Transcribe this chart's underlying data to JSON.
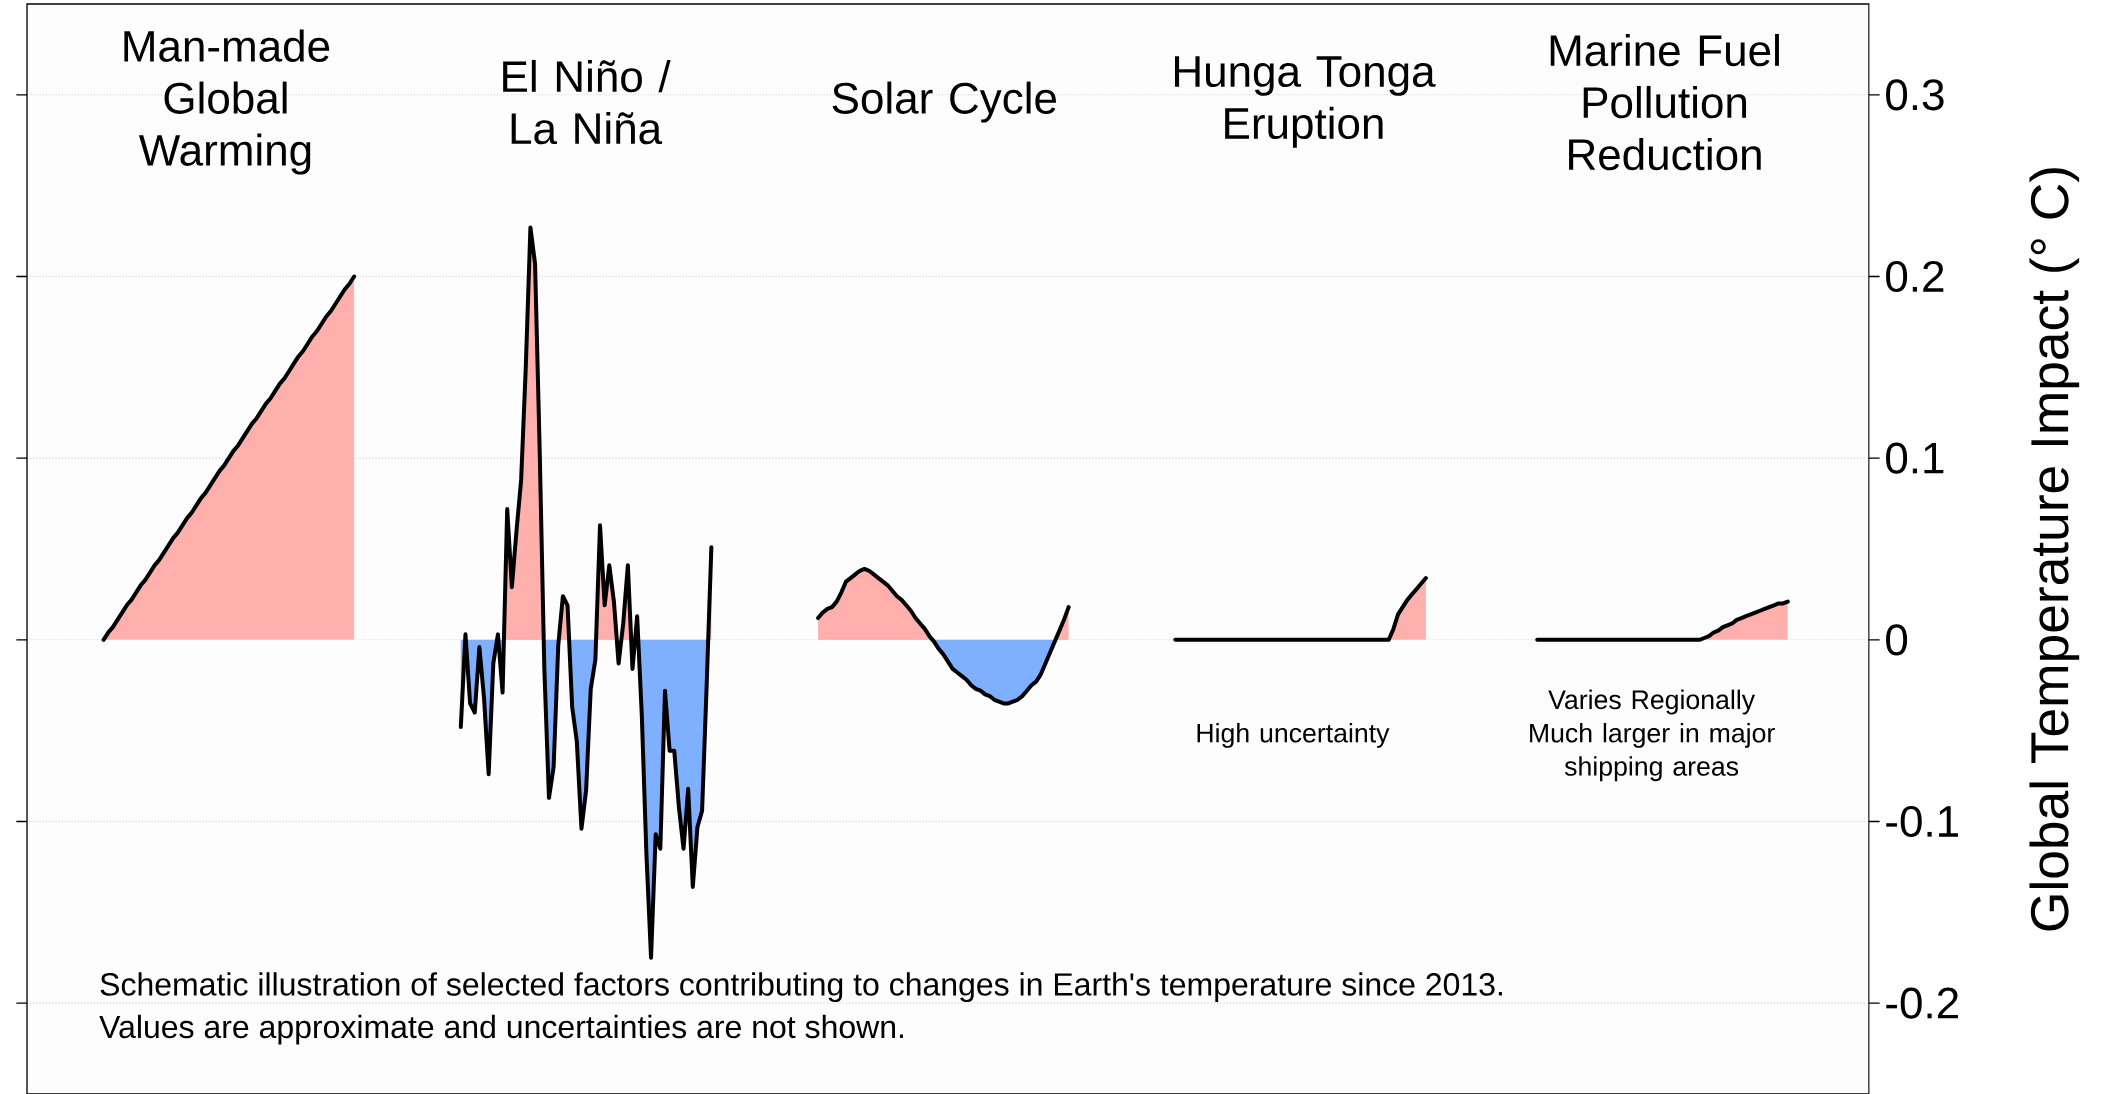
{
  "chart_data": {
    "type": "area",
    "ylabel": "Global Temperature Impact (° C)",
    "ylim": [
      -0.25,
      0.35
    ],
    "yticks": [
      -0.2,
      -0.1,
      0,
      0.1,
      0.2,
      0.3
    ],
    "tick_labels": "y",
    "grid": "y",
    "annotations": [
      "Man-made Global Warming",
      "El Niño / La Niña",
      "Solar Cycle",
      "Hunga Tonga Eruption",
      "Marine Fuel Pollution Reduction",
      "High uncertainty",
      "Varies Regionally Much larger in major shipping areas",
      "Schematic illustration of selected factors contributing to changes in Earth's temperature since 2013.",
      "Values are approximate and uncertainties are not shown."
    ],
    "categories": [
      null,
      null,
      null,
      null,
      null,
      null,
      null,
      null,
      null,
      null,
      null,
      null,
      null,
      null,
      null,
      null,
      null,
      null,
      null,
      null,
      null,
      null,
      null,
      null,
      null,
      null,
      null,
      null,
      null,
      null,
      null,
      null,
      null,
      null,
      null,
      null,
      null,
      null,
      null,
      null,
      null,
      null,
      null,
      null,
      null,
      null,
      null,
      null,
      null,
      null,
      null,
      null,
      null,
      null,
      null,
      null,
      null,
      null,
      null,
      null,
      null,
      null,
      null,
      null,
      null,
      null,
      null,
      null,
      null,
      null,
      null,
      null,
      null,
      null,
      null,
      null,
      null,
      null,
      null,
      null,
      null,
      null,
      null,
      null,
      null,
      null,
      null,
      null,
      null,
      null,
      null,
      null,
      null,
      null,
      null,
      null,
      null,
      null,
      null,
      null,
      null,
      null,
      null,
      null,
      null,
      null,
      null,
      null,
      null,
      null,
      null,
      null,
      null,
      null,
      null,
      null,
      null,
      null,
      null,
      null,
      null,
      null,
      null,
      null,
      null,
      null,
      null,
      null,
      null,
      null,
      null,
      null,
      null,
      null,
      null,
      null,
      null,
      null,
      null,
      null,
      null,
      null,
      null,
      null,
      null,
      null,
      null,
      null,
      null,
      null,
      null,
      null,
      null,
      null,
      null,
      null,
      null,
      null,
      null,
      null,
      null,
      null,
      null,
      null,
      null,
      null,
      null,
      null,
      null,
      null,
      null,
      null,
      null,
      null,
      null,
      null,
      null,
      null,
      null,
      null,
      null,
      null,
      null,
      null,
      null,
      null,
      null,
      null,
      null,
      null,
      null,
      null,
      null,
      null,
      null,
      null,
      null,
      null,
      null,
      null,
      null,
      null,
      null,
      null,
      null,
      null,
      null,
      null,
      null,
      null,
      null,
      null,
      null,
      null,
      null,
      null,
      null,
      null,
      null,
      null,
      null,
      null,
      null,
      null,
      null,
      null,
      null,
      null,
      null,
      null,
      null,
      null,
      null,
      null,
      null,
      null,
      null,
      null,
      null,
      null,
      null,
      null,
      null,
      null,
      null,
      null,
      null,
      null,
      null,
      null,
      null,
      null,
      null,
      null,
      null,
      null,
      null,
      null,
      null,
      null,
      null,
      null,
      null,
      null,
      null,
      null,
      null,
      null,
      null,
      null,
      null,
      null,
      null,
      null,
      null,
      null,
      null,
      null,
      null,
      null,
      null,
      null,
      null,
      null,
      null,
      null,
      null,
      null,
      null,
      null,
      null,
      null,
      null,
      null,
      null,
      null,
      null,
      null,
      null,
      null,
      null,
      null,
      null,
      null,
      null,
      null,
      null,
      null,
      null,
      null,
      null,
      null,
      null,
      null,
      null,
      null,
      null,
      null,
      null,
      null,
      null,
      null,
      null,
      null,
      null,
      null,
      null,
      null,
      null,
      null,
      null,
      null,
      null,
      null,
      null,
      null,
      null,
      null,
      null,
      null,
      null,
      null,
      null,
      null,
      null,
      null,
      null,
      null,
      null,
      null,
      null,
      null,
      null,
      null,
      null,
      null,
      null,
      null,
      null,
      null,
      null,
      null,
      null,
      null,
      null,
      null,
      null,
      null,
      null,
      null,
      null,
      null,
      null,
      null,
      null,
      null,
      null,
      null,
      null,
      null,
      null,
      null,
      null,
      null,
      null,
      null,
      null,
      null,
      null,
      null,
      null,
      null,
      null,
      null,
      null,
      null,
      null
    ],
    "series": [
      {
        "color": "#ffb0ad",
        "values": [
          null,
          null,
          null,
          null,
          null,
          null,
          null,
          null,
          null,
          null,
          null,
          null,
          null,
          null,
          null,
          null,
          0,
          0.004,
          0.007,
          0.011,
          0.015,
          0.019,
          0.022,
          0.026,
          0.03,
          0.033,
          0.037,
          0.041,
          0.044,
          0.048,
          0.052,
          0.056,
          0.059,
          0.063,
          0.067,
          0.07,
          0.074,
          0.078,
          0.081,
          0.085,
          0.089,
          0.093,
          0.096,
          0.1,
          0.104,
          0.107,
          0.111,
          0.115,
          0.119,
          0.122,
          0.126,
          0.13,
          0.133,
          0.137,
          0.141,
          0.144,
          0.148,
          0.152,
          0.156,
          0.159,
          0.163,
          0.167,
          0.17,
          0.174,
          0.178,
          0.181,
          0.185,
          0.189,
          0.193,
          0.196,
          0.2,
          null,
          null,
          null,
          null,
          null,
          null,
          null,
          null,
          null,
          null,
          null,
          null,
          null,
          null,
          null,
          null,
          null,
          null,
          null,
          null,
          null,
          null,
          null,
          null,
          null,
          null,
          null,
          null,
          null,
          null,
          null,
          null,
          null,
          null,
          null,
          null,
          null,
          null,
          null,
          null,
          null,
          null,
          null,
          null,
          null,
          null,
          null,
          null,
          null,
          null,
          null,
          null,
          null,
          null,
          null,
          null,
          null,
          null,
          null,
          null,
          null,
          null,
          null,
          null,
          null,
          null,
          null,
          null,
          null,
          null,
          null,
          null,
          null,
          null,
          null,
          null,
          null,
          null,
          null,
          null,
          null,
          null,
          null,
          null,
          null,
          null,
          null,
          null,
          null,
          null,
          null,
          null,
          null,
          null,
          null,
          null,
          null,
          null,
          null,
          null,
          null,
          null,
          null,
          null,
          null,
          null,
          null,
          null,
          null,
          null,
          null,
          null,
          null,
          null,
          null,
          null,
          null,
          null,
          null,
          null,
          null,
          null,
          null,
          null,
          null,
          null,
          null,
          null,
          null,
          null,
          null,
          null,
          null,
          null,
          null,
          null,
          null,
          null,
          null,
          null,
          null,
          null,
          null,
          null,
          null,
          null,
          null,
          null,
          null,
          null,
          null,
          null,
          null,
          null,
          null,
          null,
          null,
          null,
          null,
          null,
          null,
          null,
          null,
          null,
          null,
          null,
          null,
          null,
          null,
          null,
          null,
          null,
          null,
          null,
          null,
          null,
          null,
          null,
          null,
          null,
          null,
          null,
          null,
          null,
          null,
          null,
          null,
          null,
          null,
          null,
          null,
          null,
          null,
          null,
          null,
          null,
          null,
          null,
          null,
          null,
          null,
          null,
          null,
          null,
          null,
          null,
          null,
          null,
          null,
          null,
          null,
          null,
          null,
          null,
          null,
          null,
          null,
          null,
          null,
          null,
          null,
          null,
          null,
          null,
          null,
          null,
          null,
          null,
          null,
          null,
          null,
          null,
          null,
          null,
          null,
          null,
          null,
          null,
          null,
          null,
          null,
          null,
          null,
          null,
          null,
          null,
          null,
          null,
          null,
          null,
          null,
          null,
          null,
          null,
          null,
          null,
          null,
          null,
          null,
          null,
          null,
          null,
          null,
          null,
          null,
          null,
          null,
          null,
          null,
          null,
          null,
          null,
          null,
          null,
          null,
          null,
          null,
          null,
          null,
          null,
          null,
          null,
          null,
          null,
          null,
          null,
          null,
          null,
          null,
          null,
          null,
          null,
          null,
          null,
          null,
          null,
          null,
          null,
          null,
          null,
          null,
          null,
          null,
          null,
          null,
          null,
          null,
          null,
          null,
          null,
          null,
          null,
          null,
          null,
          null,
          null,
          null,
          null,
          null,
          null,
          null,
          null,
          null,
          null,
          null,
          null
        ]
      },
      {
        "color": "#ffb0ad",
        "values": [
          null,
          null,
          null,
          null,
          null,
          null,
          null,
          null,
          null,
          null,
          null,
          null,
          null,
          null,
          null,
          null,
          null,
          null,
          null,
          null,
          null,
          null,
          null,
          null,
          null,
          null,
          null,
          null,
          null,
          null,
          null,
          null,
          null,
          null,
          null,
          null,
          null,
          null,
          null,
          null,
          null,
          null,
          null,
          null,
          null,
          null,
          null,
          null,
          null,
          null,
          null,
          null,
          null,
          null,
          null,
          null,
          null,
          null,
          null,
          null,
          null,
          null,
          null,
          null,
          null,
          null,
          null,
          null,
          null,
          null,
          null,
          null,
          null,
          null,
          null,
          null,
          null,
          null,
          null,
          null,
          null,
          null,
          null,
          null,
          null,
          null,
          null,
          null,
          null,
          null,
          null,
          null,
          null,
          -0.048,
          0.003,
          -0.035,
          -0.04,
          -0.004,
          -0.032,
          -0.074,
          -0.013,
          0.003,
          -0.029,
          0.072,
          0.029,
          0.06,
          0.088,
          0.15,
          0.227,
          0.207,
          0.104,
          -0.016,
          -0.087,
          -0.07,
          -0.003,
          0.024,
          0.019,
          -0.037,
          -0.056,
          -0.104,
          -0.083,
          -0.027,
          -0.011,
          0.063,
          0.019,
          0.041,
          0.021,
          -0.013,
          0.009,
          0.041,
          -0.016,
          0.013,
          -0.041,
          -0.118,
          -0.175,
          -0.107,
          -0.115,
          -0.028,
          -0.061,
          -0.061,
          -0.092,
          -0.115,
          -0.082,
          -0.136,
          -0.103,
          -0.094,
          -0.024,
          0.051,
          null,
          null,
          null,
          null,
          null,
          null,
          null,
          null,
          null,
          null,
          null,
          null,
          null,
          null,
          null,
          null,
          null,
          null,
          null,
          null,
          null,
          null,
          null,
          null,
          null,
          null,
          null,
          null,
          null,
          null,
          null,
          null,
          null,
          null,
          null,
          null,
          null,
          null,
          null,
          null,
          null,
          null,
          null,
          null,
          null,
          null,
          null,
          null,
          null,
          null,
          null,
          null,
          null,
          null,
          null,
          null,
          null,
          null,
          null,
          null,
          null,
          null,
          null,
          null,
          null,
          null,
          null,
          null,
          null,
          null,
          null,
          null,
          null,
          null,
          null,
          null,
          null,
          null,
          null,
          null,
          null,
          null,
          null,
          null,
          null,
          null,
          null,
          null,
          null,
          null,
          null,
          null,
          null,
          null,
          null,
          null,
          null,
          null,
          null,
          null,
          null,
          null,
          null,
          null,
          null,
          null,
          null,
          null,
          null,
          null,
          null,
          null,
          null,
          null,
          null,
          null,
          null,
          null,
          null,
          null,
          null,
          null,
          null,
          null,
          null,
          null,
          null,
          null,
          null,
          null,
          null,
          null,
          null,
          null,
          null,
          null,
          null,
          null,
          null,
          null,
          null,
          null,
          null,
          null,
          null,
          null,
          null,
          null,
          null,
          null,
          null,
          null,
          null,
          null,
          null,
          null,
          null,
          null,
          null,
          null,
          null,
          null,
          null,
          null,
          null,
          null,
          null,
          null,
          null,
          null,
          null,
          null,
          null,
          null,
          null,
          null,
          null,
          null,
          null,
          null,
          null,
          null,
          null,
          null,
          null,
          null,
          null,
          null,
          null,
          null,
          null,
          null,
          null,
          null,
          null,
          null,
          null,
          null,
          null,
          null,
          null,
          null,
          null,
          null,
          null,
          null,
          null,
          null,
          null,
          null,
          null,
          null,
          null,
          null,
          null,
          null,
          null,
          null,
          null,
          null,
          null,
          null,
          null,
          null,
          null,
          null,
          null,
          null,
          null,
          null,
          null,
          null,
          null,
          null,
          null,
          null,
          null,
          null,
          null,
          null,
          null,
          null,
          null,
          null,
          null,
          null,
          null,
          null,
          null
        ]
      },
      {
        "color": "#ffb0ad",
        "values": [
          null,
          null,
          null,
          null,
          null,
          null,
          null,
          null,
          null,
          null,
          null,
          null,
          null,
          null,
          null,
          null,
          null,
          null,
          null,
          null,
          null,
          null,
          null,
          null,
          null,
          null,
          null,
          null,
          null,
          null,
          null,
          null,
          null,
          null,
          null,
          null,
          null,
          null,
          null,
          null,
          null,
          null,
          null,
          null,
          null,
          null,
          null,
          null,
          null,
          null,
          null,
          null,
          null,
          null,
          null,
          null,
          null,
          null,
          null,
          null,
          null,
          null,
          null,
          null,
          null,
          null,
          null,
          null,
          null,
          null,
          null,
          null,
          null,
          null,
          null,
          null,
          null,
          null,
          null,
          null,
          null,
          null,
          null,
          null,
          null,
          null,
          null,
          null,
          null,
          null,
          null,
          null,
          null,
          null,
          null,
          null,
          null,
          null,
          null,
          null,
          null,
          null,
          null,
          null,
          null,
          null,
          null,
          null,
          null,
          null,
          null,
          null,
          null,
          null,
          null,
          null,
          null,
          null,
          null,
          null,
          null,
          null,
          null,
          null,
          null,
          null,
          null,
          null,
          null,
          null,
          null,
          null,
          null,
          null,
          null,
          null,
          null,
          null,
          null,
          null,
          null,
          null,
          null,
          null,
          null,
          null,
          null,
          null,
          null,
          null,
          null,
          null,
          null,
          null,
          null,
          null,
          null,
          null,
          null,
          null,
          null,
          null,
          null,
          null,
          null,
          null,
          null,
          null,
          null,
          null,
          0.012,
          0.015,
          0.017,
          0.018,
          0.021,
          0.026,
          0.032,
          0.034,
          0.036,
          0.038,
          0.039,
          0.038,
          0.036,
          0.034,
          0.032,
          0.03,
          0.027,
          0.024,
          0.022,
          0.019,
          0.016,
          0.012,
          0.009,
          0.006,
          0.002,
          -0.001,
          -0.005,
          -0.008,
          -0.012,
          -0.016,
          -0.018,
          -0.02,
          -0.022,
          -0.025,
          -0.027,
          -0.028,
          -0.03,
          -0.031,
          -0.033,
          -0.034,
          -0.035,
          -0.035,
          -0.034,
          -0.033,
          -0.031,
          -0.028,
          -0.025,
          -0.023,
          -0.019,
          -0.013,
          -0.007,
          -0.001,
          0.005,
          0.011,
          0.018,
          null,
          null,
          null,
          null,
          null,
          null,
          null,
          null,
          null,
          null,
          null,
          null,
          null,
          null,
          null,
          null,
          null,
          null,
          null,
          null,
          null,
          null,
          null,
          null,
          null,
          null,
          null,
          null,
          null,
          null,
          null,
          null,
          null,
          null,
          null,
          null,
          null,
          null,
          null,
          null,
          null,
          null,
          null,
          null,
          null,
          null,
          null,
          null,
          null,
          null,
          null,
          null,
          null,
          null,
          null,
          null,
          null,
          null,
          null,
          null,
          null,
          null,
          null,
          null,
          null,
          null,
          null,
          null,
          null,
          null,
          null,
          null,
          null,
          null,
          null,
          null,
          null,
          null,
          null,
          null,
          null,
          null,
          null,
          null,
          null,
          null,
          null,
          null,
          null,
          null,
          null,
          null,
          null,
          null,
          null,
          null,
          null,
          null,
          null,
          null,
          null,
          null,
          null,
          null,
          null,
          null,
          null,
          null,
          null,
          null,
          null,
          null,
          null,
          null,
          null,
          null,
          null,
          null,
          null,
          null,
          null,
          null,
          null,
          null,
          null,
          null,
          null,
          null,
          null,
          null,
          null,
          null,
          null,
          null,
          null,
          null,
          null,
          null,
          null,
          null,
          null,
          null,
          null,
          null,
          null,
          null,
          null,
          null,
          null,
          null,
          null,
          null,
          null,
          null,
          null,
          null,
          null,
          null,
          null,
          null,
          null,
          null,
          null,
          null,
          null,
          null,
          null,
          null,
          null,
          null,
          null,
          null
        ]
      },
      {
        "color": "#ffb0ad",
        "values": [
          null,
          null,
          null,
          null,
          null,
          null,
          null,
          null,
          null,
          null,
          null,
          null,
          null,
          null,
          null,
          null,
          null,
          null,
          null,
          null,
          null,
          null,
          null,
          null,
          null,
          null,
          null,
          null,
          null,
          null,
          null,
          null,
          null,
          null,
          null,
          null,
          null,
          null,
          null,
          null,
          null,
          null,
          null,
          null,
          null,
          null,
          null,
          null,
          null,
          null,
          null,
          null,
          null,
          null,
          null,
          null,
          null,
          null,
          null,
          null,
          null,
          null,
          null,
          null,
          null,
          null,
          null,
          null,
          null,
          null,
          null,
          null,
          null,
          null,
          null,
          null,
          null,
          null,
          null,
          null,
          null,
          null,
          null,
          null,
          null,
          null,
          null,
          null,
          null,
          null,
          null,
          null,
          null,
          null,
          null,
          null,
          null,
          null,
          null,
          null,
          null,
          null,
          null,
          null,
          null,
          null,
          null,
          null,
          null,
          null,
          null,
          null,
          null,
          null,
          null,
          null,
          null,
          null,
          null,
          null,
          null,
          null,
          null,
          null,
          null,
          null,
          null,
          null,
          null,
          null,
          null,
          null,
          null,
          null,
          null,
          null,
          null,
          null,
          null,
          null,
          null,
          null,
          null,
          null,
          null,
          null,
          null,
          null,
          null,
          null,
          null,
          null,
          null,
          null,
          null,
          null,
          null,
          null,
          null,
          null,
          null,
          null,
          null,
          null,
          null,
          null,
          null,
          null,
          null,
          null,
          null,
          null,
          null,
          null,
          null,
          null,
          null,
          null,
          null,
          null,
          null,
          null,
          null,
          null,
          null,
          null,
          null,
          null,
          null,
          null,
          null,
          null,
          null,
          null,
          null,
          null,
          null,
          null,
          null,
          null,
          null,
          null,
          null,
          null,
          null,
          null,
          null,
          null,
          null,
          null,
          null,
          null,
          null,
          null,
          null,
          null,
          null,
          null,
          null,
          null,
          null,
          null,
          null,
          null,
          null,
          null,
          null,
          null,
          null,
          null,
          null,
          null,
          null,
          null,
          null,
          null,
          null,
          null,
          null,
          null,
          null,
          null,
          null,
          null,
          null,
          null,
          null,
          0,
          0,
          0,
          0,
          0,
          0,
          0,
          0,
          0,
          0,
          0,
          0,
          0,
          0,
          0,
          0,
          0,
          0,
          0,
          0,
          0,
          0,
          0,
          0,
          0,
          0,
          0,
          0,
          0,
          0,
          0,
          0,
          0,
          0,
          0,
          0,
          0,
          0,
          0,
          0,
          0,
          0,
          0,
          0,
          0,
          0,
          0,
          0.006,
          0.014,
          0.018,
          0.022,
          0.025,
          0.028,
          0.031,
          0.034,
          null,
          null,
          null,
          null,
          null,
          null,
          null,
          null,
          null,
          null,
          null,
          null,
          null,
          null,
          null,
          null,
          null,
          null,
          null,
          null,
          null,
          null,
          null,
          null,
          null,
          null,
          null,
          null,
          null,
          null,
          null,
          null,
          null,
          null,
          null,
          null,
          null,
          null,
          null,
          null,
          null,
          null,
          null,
          null,
          null,
          null,
          null,
          null,
          null,
          null,
          null,
          null,
          null,
          null,
          null,
          null,
          null,
          null,
          null,
          null,
          null,
          null,
          null,
          null,
          null,
          null,
          null,
          null,
          null,
          null,
          null,
          null,
          null,
          null,
          null,
          null,
          null,
          null,
          null,
          null,
          null,
          null,
          null,
          null,
          null,
          null,
          null,
          null,
          null,
          null,
          null,
          null,
          null,
          null,
          null
        ]
      },
      {
        "color": "#ffb0ad",
        "values": [
          null,
          null,
          null,
          null,
          null,
          null,
          null,
          null,
          null,
          null,
          null,
          null,
          null,
          null,
          null,
          null,
          null,
          null,
          null,
          null,
          null,
          null,
          null,
          null,
          null,
          null,
          null,
          null,
          null,
          null,
          null,
          null,
          null,
          null,
          null,
          null,
          null,
          null,
          null,
          null,
          null,
          null,
          null,
          null,
          null,
          null,
          null,
          null,
          null,
          null,
          null,
          null,
          null,
          null,
          null,
          null,
          null,
          null,
          null,
          null,
          null,
          null,
          null,
          null,
          null,
          null,
          null,
          null,
          null,
          null,
          null,
          null,
          null,
          null,
          null,
          null,
          null,
          null,
          null,
          null,
          null,
          null,
          null,
          null,
          null,
          null,
          null,
          null,
          null,
          null,
          null,
          null,
          null,
          null,
          null,
          null,
          null,
          null,
          null,
          null,
          null,
          null,
          null,
          null,
          null,
          null,
          null,
          null,
          null,
          null,
          null,
          null,
          null,
          null,
          null,
          null,
          null,
          null,
          null,
          null,
          null,
          null,
          null,
          null,
          null,
          null,
          null,
          null,
          null,
          null,
          null,
          null,
          null,
          null,
          null,
          null,
          null,
          null,
          null,
          null,
          null,
          null,
          null,
          null,
          null,
          null,
          null,
          null,
          null,
          null,
          null,
          null,
          null,
          null,
          null,
          null,
          null,
          null,
          null,
          null,
          null,
          null,
          null,
          null,
          null,
          null,
          null,
          null,
          null,
          null,
          null,
          null,
          null,
          null,
          null,
          null,
          null,
          null,
          null,
          null,
          null,
          null,
          null,
          null,
          null,
          null,
          null,
          null,
          null,
          null,
          null,
          null,
          null,
          null,
          null,
          null,
          null,
          null,
          null,
          null,
          null,
          null,
          null,
          null,
          null,
          null,
          null,
          null,
          null,
          null,
          null,
          null,
          null,
          null,
          null,
          null,
          null,
          null,
          null,
          null,
          null,
          null,
          null,
          null,
          null,
          null,
          null,
          null,
          null,
          null,
          null,
          null,
          null,
          null,
          null,
          null,
          null,
          null,
          null,
          null,
          null,
          null,
          null,
          null,
          null,
          null,
          null,
          null,
          null,
          null,
          null,
          null,
          null,
          null,
          null,
          null,
          null,
          null,
          null,
          null,
          null,
          null,
          null,
          null,
          null,
          null,
          null,
          null,
          null,
          null,
          null,
          null,
          null,
          null,
          null,
          null,
          null,
          null,
          null,
          null,
          null,
          null,
          null,
          null,
          null,
          null,
          null,
          null,
          null,
          null,
          null,
          null,
          null,
          null,
          null,
          null,
          null,
          null,
          null,
          null,
          null,
          null,
          null,
          null,
          null,
          null,
          null,
          null,
          null,
          null,
          null,
          null,
          null,
          null,
          null,
          null,
          null,
          null,
          null,
          null,
          null,
          null,
          null,
          null,
          null,
          0,
          0,
          0,
          0,
          0,
          0,
          0,
          0,
          0,
          0,
          0,
          0,
          0,
          0,
          0,
          0,
          0,
          0,
          0,
          0,
          0,
          0,
          0,
          0,
          0,
          0,
          0,
          0,
          0,
          0,
          0,
          0,
          0,
          0,
          0,
          0,
          0.001,
          0.002,
          0.004,
          0.005,
          0.007,
          0.008,
          0.009,
          0.011,
          0.012,
          0.013,
          0.014,
          0.015,
          0.016,
          0.017,
          0.018,
          0.019,
          0.02,
          0.02,
          0.021,
          null,
          null,
          null,
          null,
          null,
          null,
          null,
          null,
          null,
          null,
          null,
          null,
          null,
          null,
          null,
          null,
          null
        ]
      }
    ]
  }
}
